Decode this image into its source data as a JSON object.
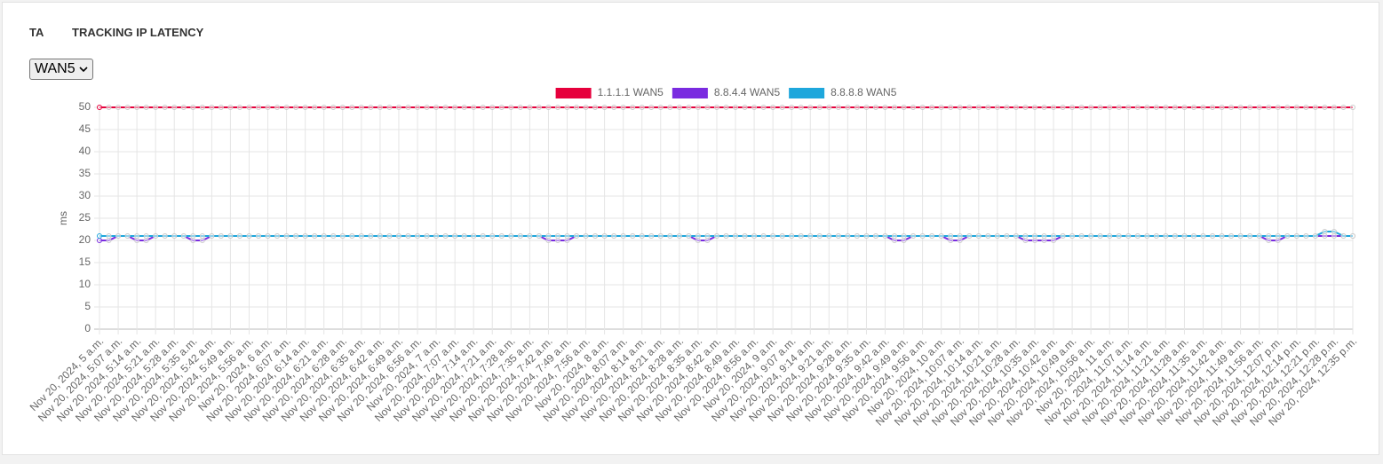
{
  "header": {
    "tab": "TA",
    "title": "TRACKING IP LATENCY"
  },
  "select": {
    "value": "WAN5"
  },
  "chart_data": {
    "type": "line",
    "y_label": "ms",
    "ylim": [
      0,
      50
    ],
    "yticks": [
      0,
      5,
      10,
      15,
      20,
      25,
      30,
      35,
      40,
      45,
      50
    ],
    "grid": true,
    "legend": "top",
    "categories": [
      "Nov 20, 2024, 5 a.m.",
      null,
      "Nov 20, 2024, 5:07 a.m.",
      null,
      "Nov 20, 2024, 5:14 a.m.",
      null,
      "Nov 20, 2024, 5:21 a.m.",
      null,
      "Nov 20, 2024, 5:28 a.m.",
      null,
      "Nov 20, 2024, 5:35 a.m.",
      null,
      "Nov 20, 2024, 5:42 a.m.",
      null,
      "Nov 20, 2024, 5:49 a.m.",
      null,
      "Nov 20, 2024, 5:56 a.m.",
      null,
      "Nov 20, 2024, 6 a.m.",
      null,
      "Nov 20, 2024, 6:07 a.m.",
      null,
      "Nov 20, 2024, 6:14 a.m.",
      null,
      "Nov 20, 2024, 6:21 a.m.",
      null,
      "Nov 20, 2024, 6:28 a.m.",
      null,
      "Nov 20, 2024, 6:35 a.m.",
      null,
      "Nov 20, 2024, 6:42 a.m.",
      null,
      "Nov 20, 2024, 6:49 a.m.",
      null,
      "Nov 20, 2024, 6:56 a.m.",
      null,
      "Nov 20, 2024, 7 a.m.",
      null,
      "Nov 20, 2024, 7:07 a.m.",
      null,
      "Nov 20, 2024, 7:14 a.m.",
      null,
      "Nov 20, 2024, 7:21 a.m.",
      null,
      "Nov 20, 2024, 7:28 a.m.",
      null,
      "Nov 20, 2024, 7:35 a.m.",
      null,
      "Nov 20, 2024, 7:42 a.m.",
      null,
      "Nov 20, 2024, 7:49 a.m.",
      null,
      "Nov 20, 2024, 7:56 a.m.",
      null,
      "Nov 20, 2024, 8 a.m.",
      null,
      "Nov 20, 2024, 8:07 a.m.",
      null,
      "Nov 20, 2024, 8:14 a.m.",
      null,
      "Nov 20, 2024, 8:21 a.m.",
      null,
      "Nov 20, 2024, 8:28 a.m.",
      null,
      "Nov 20, 2024, 8:35 a.m.",
      null,
      "Nov 20, 2024, 8:42 a.m.",
      null,
      "Nov 20, 2024, 8:49 a.m.",
      null,
      "Nov 20, 2024, 8:56 a.m.",
      null,
      "Nov 20, 2024, 9 a.m.",
      null,
      "Nov 20, 2024, 9:07 a.m.",
      null,
      "Nov 20, 2024, 9:14 a.m.",
      null,
      "Nov 20, 2024, 9:21 a.m.",
      null,
      "Nov 20, 2024, 9:28 a.m.",
      null,
      "Nov 20, 2024, 9:35 a.m.",
      null,
      "Nov 20, 2024, 9:42 a.m.",
      null,
      "Nov 20, 2024, 9:49 a.m.",
      null,
      "Nov 20, 2024, 9:56 a.m.",
      null,
      "Nov 20, 2024, 10 a.m.",
      null,
      "Nov 20, 2024, 10:07 a.m.",
      null,
      "Nov 20, 2024, 10:14 a.m.",
      null,
      "Nov 20, 2024, 10:21 a.m.",
      null,
      "Nov 20, 2024, 10:28 a.m.",
      null,
      "Nov 20, 2024, 10:35 a.m.",
      null,
      "Nov 20, 2024, 10:42 a.m.",
      null,
      "Nov 20, 2024, 10:49 a.m.",
      null,
      "Nov 20, 2024, 10:56 a.m.",
      null,
      "Nov 20, 2024, 11 a.m.",
      null,
      "Nov 20, 2024, 11:07 a.m.",
      null,
      "Nov 20, 2024, 11:14 a.m.",
      null,
      "Nov 20, 2024, 11:21 a.m.",
      null,
      "Nov 20, 2024, 11:28 a.m.",
      null,
      "Nov 20, 2024, 11:35 a.m.",
      null,
      "Nov 20, 2024, 11:42 a.m.",
      null,
      "Nov 20, 2024, 11:49 a.m.",
      null,
      "Nov 20, 2024, 11:56 a.m.",
      null,
      "Nov 20, 2024, 12:07 p.m.",
      null,
      "Nov 20, 2024, 12:14 p.m.",
      null,
      "Nov 20, 2024, 12:21 p.m.",
      null,
      "Nov 20, 2024, 12:28 p.m.",
      null,
      "Nov 20, 2024, 12:35 p.m."
    ],
    "series": [
      {
        "name": "1.1.1.1 WAN5",
        "color": "#e6003c",
        "values": [
          50,
          50,
          50,
          50,
          50,
          50,
          50,
          50,
          50,
          50,
          50,
          50,
          50,
          50,
          50,
          50,
          50,
          50,
          50,
          50,
          50,
          50,
          50,
          50,
          50,
          50,
          50,
          50,
          50,
          50,
          50,
          50,
          50,
          50,
          50,
          50,
          50,
          50,
          50,
          50,
          50,
          50,
          50,
          50,
          50,
          50,
          50,
          50,
          50,
          50,
          50,
          50,
          50,
          50,
          50,
          50,
          50,
          50,
          50,
          50,
          50,
          50,
          50,
          50,
          50,
          50,
          50,
          50,
          50,
          50,
          50,
          50,
          50,
          50,
          50,
          50,
          50,
          50,
          50,
          50,
          50,
          50,
          50,
          50,
          50,
          50,
          50,
          50,
          50,
          50,
          50,
          50,
          50,
          50,
          50,
          50,
          50,
          50,
          50,
          50,
          50,
          50,
          50,
          50,
          50,
          50,
          50,
          50,
          50,
          50,
          50,
          50,
          50,
          50,
          50,
          50,
          50,
          50,
          50,
          50,
          50,
          50,
          50,
          50,
          50,
          50,
          50,
          50,
          50,
          50,
          50,
          50,
          50,
          50,
          50
        ]
      },
      {
        "name": "8.8.4.4 WAN5",
        "color": "#7a2be0",
        "values": [
          20,
          20,
          21,
          21,
          20,
          20,
          21,
          21,
          21,
          21,
          20,
          20,
          21,
          21,
          21,
          21,
          21,
          21,
          21,
          21,
          21,
          21,
          21,
          21,
          21,
          21,
          21,
          21,
          21,
          21,
          21,
          21,
          21,
          21,
          21,
          21,
          21,
          21,
          21,
          21,
          21,
          21,
          21,
          21,
          21,
          21,
          21,
          21,
          20,
          20,
          20,
          21,
          21,
          21,
          21,
          21,
          21,
          21,
          21,
          21,
          21,
          21,
          21,
          21,
          20,
          20,
          21,
          21,
          21,
          21,
          21,
          21,
          21,
          21,
          21,
          21,
          21,
          21,
          21,
          21,
          21,
          21,
          21,
          21,
          21,
          20,
          20,
          21,
          21,
          21,
          21,
          20,
          20,
          21,
          21,
          21,
          21,
          21,
          21,
          20,
          20,
          20,
          20,
          21,
          21,
          21,
          21,
          21,
          21,
          21,
          21,
          21,
          21,
          21,
          21,
          21,
          21,
          21,
          21,
          21,
          21,
          21,
          21,
          21,
          21,
          20,
          20,
          21,
          21,
          21,
          21,
          21,
          21,
          21,
          21
        ]
      },
      {
        "name": "8.8.8.8 WAN5",
        "color": "#1ea7dc",
        "values": [
          21,
          21,
          21,
          21,
          21,
          21,
          21,
          21,
          21,
          21,
          21,
          21,
          21,
          21,
          21,
          21,
          21,
          21,
          21,
          21,
          21,
          21,
          21,
          21,
          21,
          21,
          21,
          21,
          21,
          21,
          21,
          21,
          21,
          21,
          21,
          21,
          21,
          21,
          21,
          21,
          21,
          21,
          21,
          21,
          21,
          21,
          21,
          21,
          21,
          21,
          21,
          21,
          21,
          21,
          21,
          21,
          21,
          21,
          21,
          21,
          21,
          21,
          21,
          21,
          21,
          21,
          21,
          21,
          21,
          21,
          21,
          21,
          21,
          21,
          21,
          21,
          21,
          21,
          21,
          21,
          21,
          21,
          21,
          21,
          21,
          21,
          21,
          21,
          21,
          21,
          21,
          21,
          21,
          21,
          21,
          21,
          21,
          21,
          21,
          21,
          21,
          21,
          21,
          21,
          21,
          21,
          21,
          21,
          21,
          21,
          21,
          21,
          21,
          21,
          21,
          21,
          21,
          21,
          21,
          21,
          21,
          21,
          21,
          21,
          21,
          21,
          21,
          21,
          21,
          21,
          21,
          22,
          22,
          21,
          21
        ]
      }
    ]
  }
}
